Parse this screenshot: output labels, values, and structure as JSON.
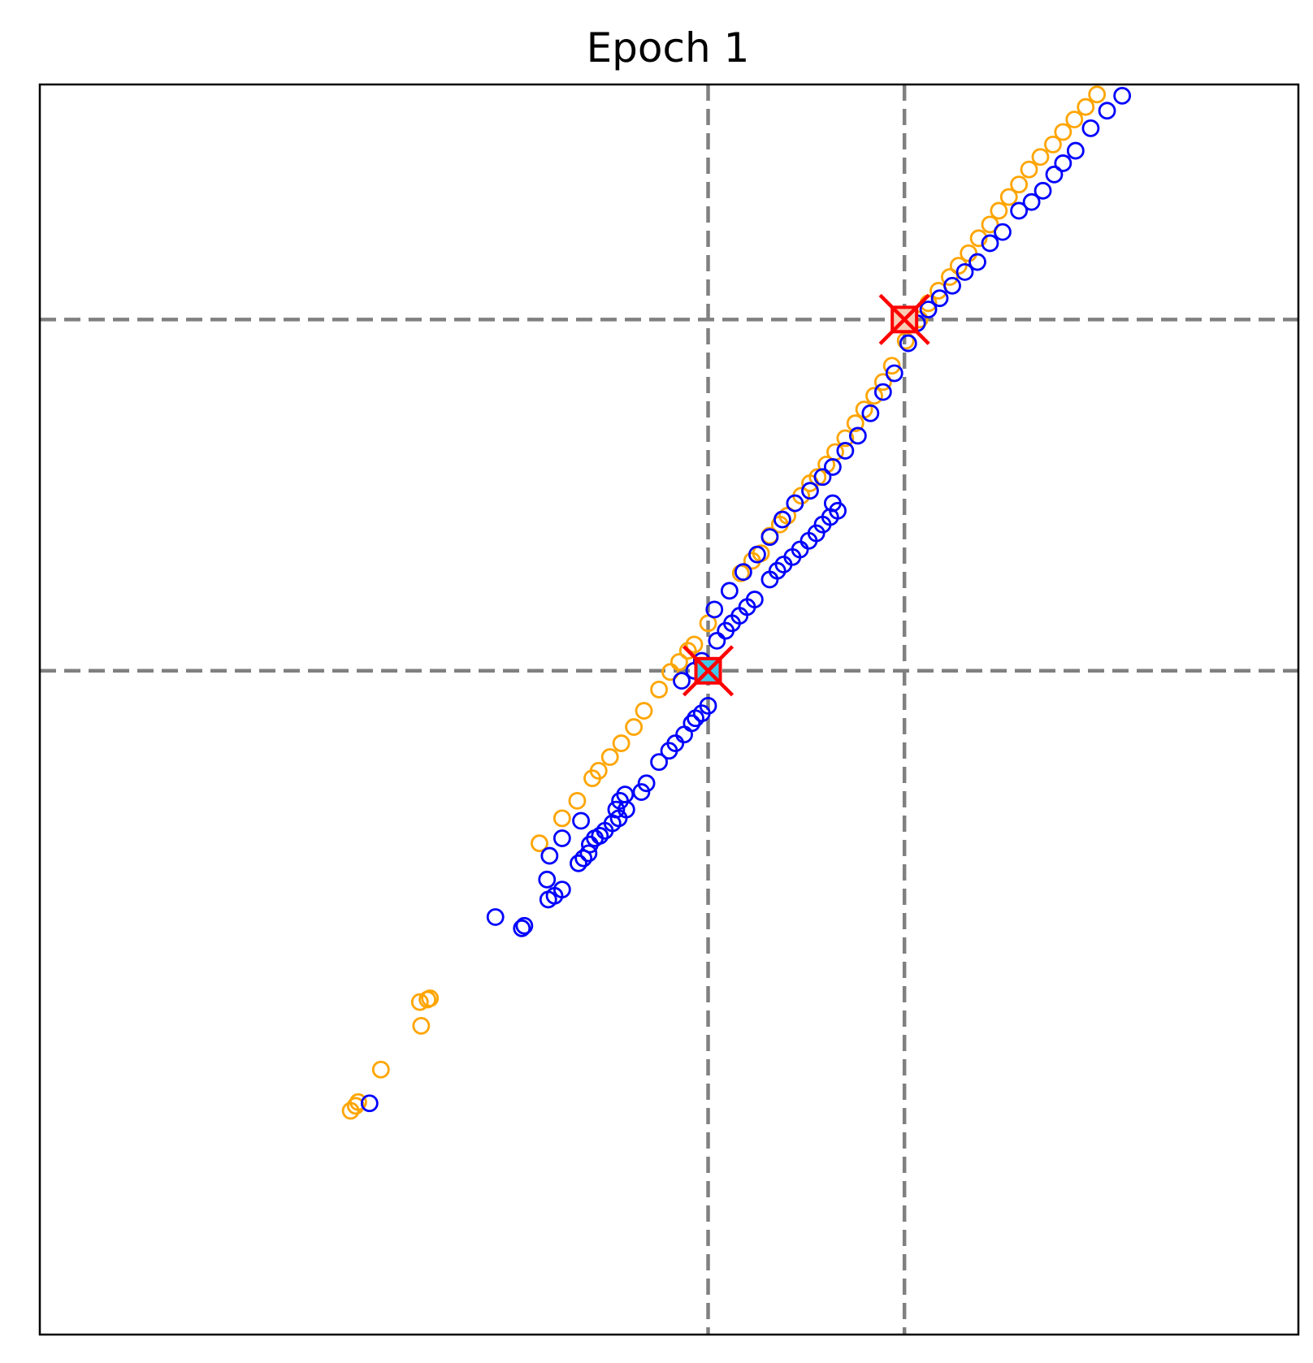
{
  "chart_data": {
    "type": "scatter",
    "title": "Epoch 1",
    "xlabel": "",
    "ylabel": "",
    "xlim": [
      0,
      1
    ],
    "ylim": [
      0,
      1
    ],
    "ticks": "none",
    "grid": false,
    "legend": "none",
    "reference_lines": {
      "vertical": [
        0.531,
        0.687
      ],
      "horizontal": [
        0.531,
        0.812
      ],
      "color": "#808080",
      "style": "dashed"
    },
    "series": [
      {
        "color": "#ffa500",
        "marker": "hollow-circle",
        "points": [
          [
            0.247,
            0.179
          ],
          [
            0.251,
            0.183
          ],
          [
            0.253,
            0.186
          ],
          [
            0.271,
            0.212
          ],
          [
            0.303,
            0.247
          ],
          [
            0.302,
            0.266
          ],
          [
            0.308,
            0.268
          ],
          [
            0.31,
            0.269
          ],
          [
            0.397,
            0.393
          ],
          [
            0.415,
            0.413
          ],
          [
            0.427,
            0.427
          ],
          [
            0.439,
            0.445
          ],
          [
            0.444,
            0.451
          ],
          [
            0.453,
            0.462
          ],
          [
            0.462,
            0.473
          ],
          [
            0.472,
            0.486
          ],
          [
            0.48,
            0.499
          ],
          [
            0.492,
            0.516
          ],
          [
            0.501,
            0.53
          ],
          [
            0.508,
            0.538
          ],
          [
            0.515,
            0.547
          ],
          [
            0.52,
            0.552
          ],
          [
            0.531,
            0.569
          ],
          [
            0.557,
            0.609
          ],
          [
            0.566,
            0.619
          ],
          [
            0.573,
            0.625
          ],
          [
            0.58,
            0.639
          ],
          [
            0.588,
            0.648
          ],
          [
            0.594,
            0.655
          ],
          [
            0.605,
            0.671
          ],
          [
            0.612,
            0.681
          ],
          [
            0.618,
            0.686
          ],
          [
            0.625,
            0.696
          ],
          [
            0.632,
            0.706
          ],
          [
            0.64,
            0.717
          ],
          [
            0.648,
            0.729
          ],
          [
            0.655,
            0.74
          ],
          [
            0.663,
            0.751
          ],
          [
            0.67,
            0.762
          ],
          [
            0.677,
            0.775
          ],
          [
            0.688,
            0.795
          ],
          [
            0.699,
            0.812
          ],
          [
            0.706,
            0.825
          ],
          [
            0.714,
            0.835
          ],
          [
            0.723,
            0.846
          ],
          [
            0.73,
            0.855
          ],
          [
            0.738,
            0.865
          ],
          [
            0.746,
            0.877
          ],
          [
            0.755,
            0.888
          ],
          [
            0.762,
            0.899
          ],
          [
            0.77,
            0.91
          ],
          [
            0.778,
            0.92
          ],
          [
            0.786,
            0.932
          ],
          [
            0.795,
            0.942
          ],
          [
            0.805,
            0.952
          ],
          [
            0.813,
            0.962
          ],
          [
            0.822,
            0.972
          ],
          [
            0.831,
            0.982
          ],
          [
            0.84,
            0.992
          ]
        ]
      },
      {
        "color": "#0000ff",
        "marker": "hollow-circle",
        "points": [
          [
            0.262,
            0.185
          ],
          [
            0.362,
            0.334
          ],
          [
            0.383,
            0.325
          ],
          [
            0.385,
            0.327
          ],
          [
            0.403,
            0.364
          ],
          [
            0.404,
            0.348
          ],
          [
            0.409,
            0.351
          ],
          [
            0.415,
            0.356
          ],
          [
            0.405,
            0.383
          ],
          [
            0.415,
            0.397
          ],
          [
            0.428,
            0.377
          ],
          [
            0.432,
            0.381
          ],
          [
            0.436,
            0.385
          ],
          [
            0.43,
            0.411
          ],
          [
            0.437,
            0.392
          ],
          [
            0.441,
            0.397
          ],
          [
            0.445,
            0.399
          ],
          [
            0.449,
            0.403
          ],
          [
            0.455,
            0.409
          ],
          [
            0.46,
            0.413
          ],
          [
            0.466,
            0.42
          ],
          [
            0.458,
            0.42
          ],
          [
            0.461,
            0.427
          ],
          [
            0.465,
            0.432
          ],
          [
            0.478,
            0.434
          ],
          [
            0.482,
            0.441
          ],
          [
            0.492,
            0.458
          ],
          [
            0.5,
            0.467
          ],
          [
            0.505,
            0.473
          ],
          [
            0.512,
            0.48
          ],
          [
            0.518,
            0.489
          ],
          [
            0.521,
            0.493
          ],
          [
            0.526,
            0.497
          ],
          [
            0.531,
            0.503
          ],
          [
            0.51,
            0.523
          ],
          [
            0.52,
            0.531
          ],
          [
            0.526,
            0.539
          ],
          [
            0.538,
            0.555
          ],
          [
            0.545,
            0.563
          ],
          [
            0.55,
            0.569
          ],
          [
            0.556,
            0.575
          ],
          [
            0.562,
            0.582
          ],
          [
            0.568,
            0.588
          ],
          [
            0.58,
            0.604
          ],
          [
            0.586,
            0.611
          ],
          [
            0.591,
            0.616
          ],
          [
            0.598,
            0.622
          ],
          [
            0.604,
            0.628
          ],
          [
            0.611,
            0.635
          ],
          [
            0.617,
            0.641
          ],
          [
            0.622,
            0.648
          ],
          [
            0.628,
            0.654
          ],
          [
            0.634,
            0.659
          ],
          [
            0.63,
            0.665
          ],
          [
            0.536,
            0.58
          ],
          [
            0.548,
            0.595
          ],
          [
            0.559,
            0.61
          ],
          [
            0.57,
            0.624
          ],
          [
            0.58,
            0.638
          ],
          [
            0.59,
            0.652
          ],
          [
            0.6,
            0.665
          ],
          [
            0.612,
            0.675
          ],
          [
            0.622,
            0.686
          ],
          [
            0.63,
            0.694
          ],
          [
            0.64,
            0.707
          ],
          [
            0.65,
            0.719
          ],
          [
            0.66,
            0.737
          ],
          [
            0.67,
            0.754
          ],
          [
            0.679,
            0.769
          ],
          [
            0.69,
            0.793
          ],
          [
            0.697,
            0.809
          ],
          [
            0.706,
            0.82
          ],
          [
            0.715,
            0.829
          ],
          [
            0.725,
            0.839
          ],
          [
            0.735,
            0.85
          ],
          [
            0.745,
            0.858
          ],
          [
            0.755,
            0.873
          ],
          [
            0.765,
            0.882
          ],
          [
            0.778,
            0.899
          ],
          [
            0.788,
            0.906
          ],
          [
            0.797,
            0.915
          ],
          [
            0.806,
            0.928
          ],
          [
            0.813,
            0.937
          ],
          [
            0.823,
            0.947
          ],
          [
            0.835,
            0.965
          ],
          [
            0.848,
            0.979
          ],
          [
            0.86,
            0.991
          ]
        ]
      }
    ],
    "highlights": [
      {
        "x": 0.531,
        "y": 0.531,
        "fill": "#40c8e8",
        "marker": "square-with-red-x"
      },
      {
        "x": 0.687,
        "y": 0.812,
        "fill": "#f8cdb4",
        "marker": "square-with-red-x"
      }
    ]
  }
}
